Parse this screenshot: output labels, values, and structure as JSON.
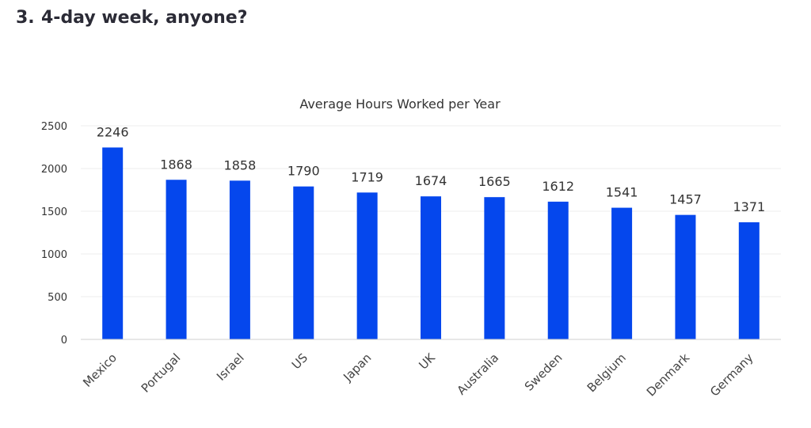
{
  "heading": {
    "number": "3.",
    "text": "4-day week, anyone?"
  },
  "colors": {
    "bar": "#0547ed",
    "grid": "#ececec",
    "axis": "#cfcfcf"
  },
  "chart_data": {
    "type": "bar",
    "title": "Average Hours Worked per Year",
    "xlabel": "",
    "ylabel": "",
    "categories": [
      "Mexico",
      "Portugal",
      "Israel",
      "US",
      "Japan",
      "UK",
      "Australia",
      "Sweden",
      "Belgium",
      "Denmark",
      "Germany"
    ],
    "values": [
      2246,
      1868,
      1858,
      1790,
      1719,
      1674,
      1665,
      1612,
      1541,
      1457,
      1371
    ],
    "ylim": [
      0,
      2500
    ],
    "yticks": [
      0,
      500,
      1000,
      1500,
      2000,
      2500
    ],
    "grid": true,
    "legend": "none"
  }
}
